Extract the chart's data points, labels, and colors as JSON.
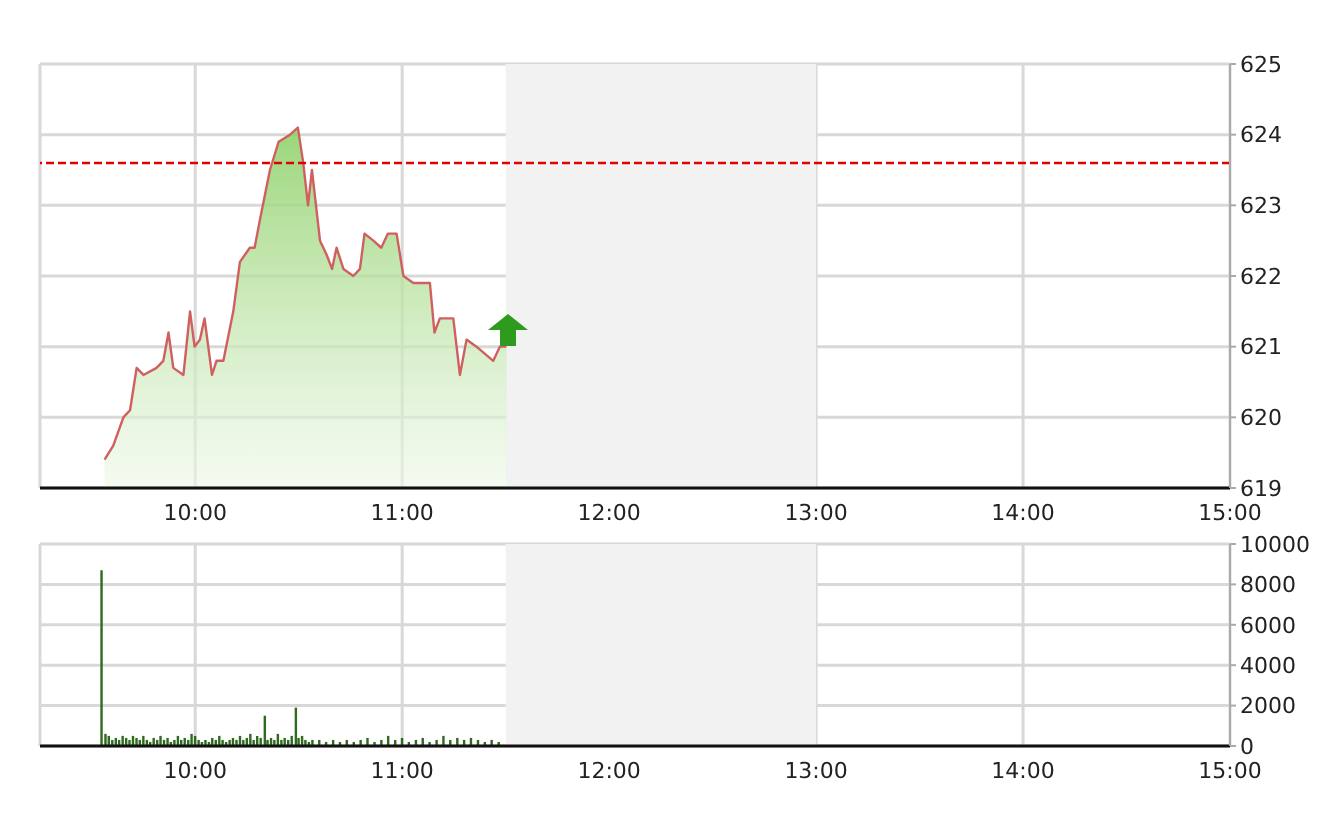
{
  "chart_data": [
    {
      "type": "area",
      "xlim": [
        9.25,
        15
      ],
      "xticks": [
        {
          "value": 10,
          "label": "10:00"
        },
        {
          "value": 11,
          "label": "11:00"
        },
        {
          "value": 12,
          "label": "12:00"
        },
        {
          "value": 13,
          "label": "13:00"
        },
        {
          "value": 14,
          "label": "14:00"
        },
        {
          "value": 15,
          "label": "15:00"
        }
      ],
      "ylim": [
        619,
        625
      ],
      "yticks": [
        619,
        620,
        621,
        622,
        623,
        624,
        625
      ],
      "grid": true,
      "series": [
        {
          "color": "#d06060",
          "x": [
            9.562,
            9.604,
            9.653,
            9.685,
            9.717,
            9.75,
            9.813,
            9.846,
            9.871,
            9.894,
            9.943,
            9.975,
            9.997,
            10.023,
            10.045,
            10.081,
            10.103,
            10.136,
            10.184,
            10.216,
            10.264,
            10.287,
            10.313,
            10.361,
            10.403,
            10.458,
            10.496,
            10.522,
            10.545,
            10.564,
            10.603,
            10.635,
            10.661,
            10.683,
            10.716,
            10.764,
            10.796,
            10.818,
            10.861,
            10.899,
            10.931,
            10.973,
            11.006,
            11.054,
            11.102,
            11.134,
            11.156,
            11.182,
            11.247,
            11.279,
            11.311,
            11.359,
            11.44,
            11.472,
            11.504
          ],
          "values": [
            619.4,
            619.6,
            620.0,
            620.1,
            620.7,
            620.6,
            620.7,
            620.8,
            621.2,
            620.7,
            620.6,
            621.5,
            621.0,
            621.1,
            621.4,
            620.6,
            620.8,
            620.8,
            621.5,
            622.2,
            622.4,
            622.4,
            622.8,
            623.5,
            623.9,
            624.0,
            624.1,
            623.6,
            623.0,
            623.5,
            622.5,
            622.3,
            622.1,
            622.4,
            622.1,
            622.0,
            622.1,
            622.6,
            622.5,
            622.4,
            622.6,
            622.6,
            622.0,
            621.9,
            621.9,
            621.9,
            621.2,
            621.4,
            621.4,
            620.6,
            621.1,
            621.0,
            620.8,
            621.0,
            621.0
          ]
        }
      ],
      "ref_lines": [
        {
          "axis": "y",
          "value": 623.6,
          "color": "#e00000",
          "line_style": "dashed"
        }
      ],
      "bands": [
        {
          "axis": "x",
          "from": 11.5,
          "to": 13,
          "color": "#f2f2f2"
        }
      ]
    },
    {
      "type": "bar",
      "xlim": [
        9.25,
        15
      ],
      "xticks": [
        {
          "value": 10,
          "label": "10:00"
        },
        {
          "value": 11,
          "label": "11:00"
        },
        {
          "value": 12,
          "label": "12:00"
        },
        {
          "value": 13,
          "label": "13:00"
        },
        {
          "value": 14,
          "label": "14:00"
        },
        {
          "value": 15,
          "label": "15:00"
        }
      ],
      "ylim": [
        0,
        10000
      ],
      "yticks": [
        0,
        2000,
        4000,
        6000,
        8000,
        10000
      ],
      "grid": true,
      "color": "#2e6b1e",
      "x": [
        9.548,
        9.567,
        9.583,
        9.6,
        9.617,
        9.633,
        9.65,
        9.667,
        9.683,
        9.7,
        9.717,
        9.733,
        9.75,
        9.767,
        9.783,
        9.8,
        9.817,
        9.833,
        9.85,
        9.867,
        9.883,
        9.9,
        9.917,
        9.933,
        9.95,
        9.967,
        9.983,
        10.0,
        10.017,
        10.033,
        10.05,
        10.067,
        10.083,
        10.1,
        10.117,
        10.133,
        10.15,
        10.167,
        10.183,
        10.2,
        10.217,
        10.233,
        10.25,
        10.267,
        10.283,
        10.3,
        10.317,
        10.337,
        10.35,
        10.367,
        10.383,
        10.4,
        10.417,
        10.433,
        10.45,
        10.467,
        10.487,
        10.5,
        10.517,
        10.533,
        10.55,
        10.567,
        10.6,
        10.633,
        10.667,
        10.7,
        10.733,
        10.767,
        10.8,
        10.833,
        10.867,
        10.9,
        10.933,
        10.967,
        11.0,
        11.033,
        11.067,
        11.1,
        11.133,
        11.167,
        11.2,
        11.233,
        11.267,
        11.3,
        11.333,
        11.367,
        11.4,
        11.433,
        11.467
      ],
      "values": [
        8700,
        600,
        500,
        300,
        400,
        300,
        500,
        400,
        300,
        500,
        400,
        300,
        500,
        300,
        200,
        400,
        300,
        500,
        300,
        400,
        200,
        300,
        500,
        300,
        400,
        300,
        600,
        500,
        300,
        200,
        300,
        200,
        400,
        300,
        500,
        300,
        200,
        300,
        400,
        300,
        500,
        300,
        400,
        600,
        300,
        500,
        400,
        1500,
        300,
        400,
        300,
        600,
        300,
        400,
        300,
        500,
        1900,
        400,
        500,
        300,
        200,
        300,
        300,
        200,
        300,
        200,
        300,
        200,
        300,
        400,
        200,
        300,
        500,
        300,
        400,
        200,
        300,
        400,
        200,
        300,
        500,
        300,
        400,
        300,
        400,
        300,
        200,
        300,
        200
      ],
      "bands": [
        {
          "axis": "x",
          "from": 11.5,
          "to": 13,
          "color": "#f2f2f2"
        }
      ]
    }
  ]
}
